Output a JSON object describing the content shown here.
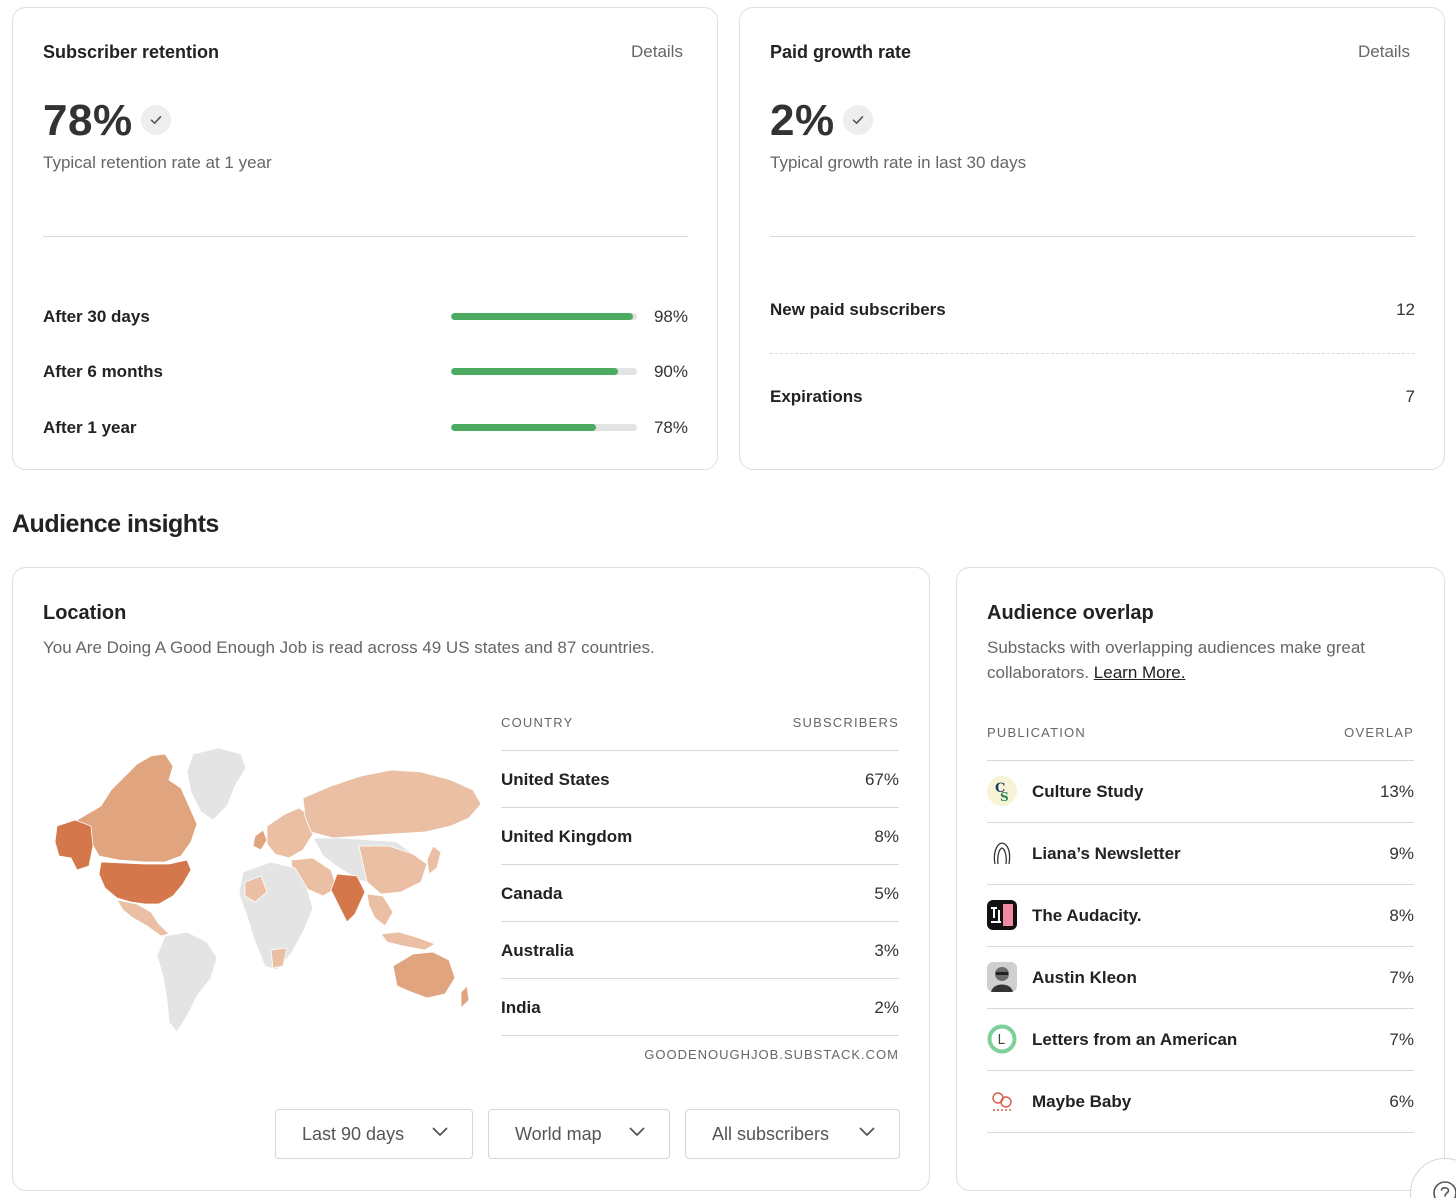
{
  "retention": {
    "title": "Subscriber retention",
    "details": "Details",
    "metric": "78%",
    "subtext": "Typical retention rate at 1 year",
    "rows": [
      {
        "label": "After 30 days",
        "value": "98%",
        "fraction": 0.98
      },
      {
        "label": "After 6 months",
        "value": "90%",
        "fraction": 0.9
      },
      {
        "label": "After 1 year",
        "value": "78%",
        "fraction": 0.78
      }
    ]
  },
  "paid": {
    "title": "Paid growth rate",
    "details": "Details",
    "metric": "2%",
    "subtext": "Typical growth rate in last 30 days",
    "rows": [
      {
        "label": "New paid subscribers",
        "value": "12"
      },
      {
        "label": "Expirations",
        "value": "7"
      }
    ]
  },
  "section_heading": "Audience insights",
  "location": {
    "title": "Location",
    "subtext": "You Are Doing A Good Enough Job is read across 49 US states and 87 countries.",
    "col_country": "COUNTRY",
    "col_subscribers": "SUBSCRIBERS",
    "rows": [
      {
        "country": "United States",
        "value": "67%"
      },
      {
        "country": "United Kingdom",
        "value": "8%"
      },
      {
        "country": "Canada",
        "value": "5%"
      },
      {
        "country": "Australia",
        "value": "3%"
      },
      {
        "country": "India",
        "value": "2%"
      }
    ],
    "footnote": "GOODENOUGHJOB.SUBSTACK.COM",
    "filters": {
      "period": "Last 90 days",
      "view": "World map",
      "audience": "All subscribers"
    },
    "map_colors": {
      "high": "#d4784b",
      "medium": "#e0a47f",
      "low": "#ebbfa3",
      "none": "#e4e4e4"
    }
  },
  "overlap": {
    "title": "Audience overlap",
    "subtext_1": "Substacks with overlapping audiences make great",
    "subtext_2": "collaborators.",
    "learn_more": "Learn More.",
    "col_publication": "PUBLICATION",
    "col_overlap": "OVERLAP",
    "rows": [
      {
        "name": "Culture Study",
        "value": "13%",
        "icon": "culture-study-logo"
      },
      {
        "name": "Liana’s Newsletter",
        "value": "9%",
        "icon": "lianas-newsletter-logo"
      },
      {
        "name": "The Audacity.",
        "value": "8%",
        "icon": "the-audacity-logo"
      },
      {
        "name": "Austin Kleon",
        "value": "7%",
        "icon": "austin-kleon-avatar"
      },
      {
        "name": "Letters from an American",
        "value": "7%",
        "icon": "letters-from-an-american-logo"
      },
      {
        "name": "Maybe Baby",
        "value": "6%",
        "icon": "maybe-baby-logo"
      }
    ]
  },
  "colors": {
    "accent_green": "#4cab63",
    "border": "#dedede"
  }
}
